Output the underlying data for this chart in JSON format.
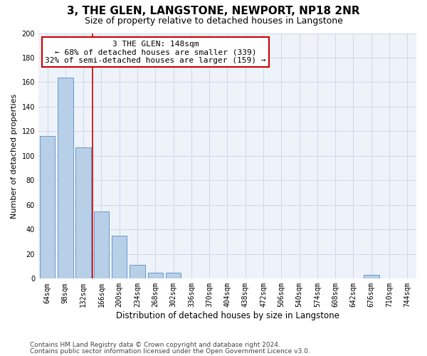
{
  "title": "3, THE GLEN, LANGSTONE, NEWPORT, NP18 2NR",
  "subtitle": "Size of property relative to detached houses in Langstone",
  "xlabel": "Distribution of detached houses by size in Langstone",
  "ylabel": "Number of detached properties",
  "bar_labels": [
    "64sqm",
    "98sqm",
    "132sqm",
    "166sqm",
    "200sqm",
    "234sqm",
    "268sqm",
    "302sqm",
    "336sqm",
    "370sqm",
    "404sqm",
    "438sqm",
    "472sqm",
    "506sqm",
    "540sqm",
    "574sqm",
    "608sqm",
    "642sqm",
    "676sqm",
    "710sqm",
    "744sqm"
  ],
  "bar_values": [
    116,
    164,
    107,
    55,
    35,
    11,
    5,
    5,
    0,
    0,
    0,
    0,
    0,
    0,
    0,
    0,
    0,
    0,
    3,
    0,
    0
  ],
  "bar_color": "#b8cfe8",
  "bar_edge_color": "#6699cc",
  "grid_color": "#d0d8e8",
  "background_color": "#eef2f9",
  "red_line_x": 2.5,
  "annotation_title": "3 THE GLEN: 148sqm",
  "annotation_line1": "← 68% of detached houses are smaller (339)",
  "annotation_line2": "32% of semi-detached houses are larger (159) →",
  "annotation_box_color": "#ffffff",
  "annotation_box_edge_color": "#cc0000",
  "ylim": [
    0,
    200
  ],
  "yticks": [
    0,
    20,
    40,
    60,
    80,
    100,
    120,
    140,
    160,
    180,
    200
  ],
  "footnote1": "Contains HM Land Registry data © Crown copyright and database right 2024.",
  "footnote2": "Contains public sector information licensed under the Open Government Licence v3.0.",
  "title_fontsize": 11,
  "subtitle_fontsize": 9,
  "xlabel_fontsize": 8.5,
  "ylabel_fontsize": 8,
  "tick_fontsize": 7,
  "annotation_fontsize": 8,
  "footnote_fontsize": 6.5
}
